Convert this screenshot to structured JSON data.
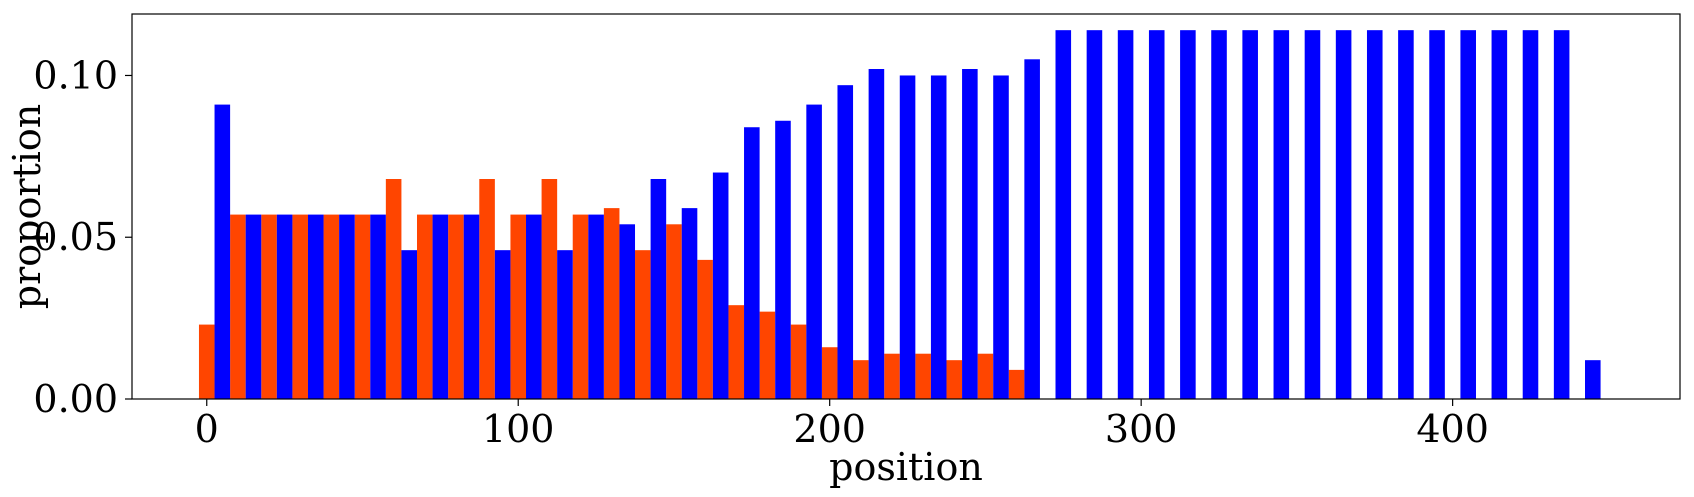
{
  "chart_data": {
    "type": "bar",
    "title": "",
    "xlabel": "position",
    "ylabel": "proportion",
    "xlim": [
      -24,
      473
    ],
    "ylim": [
      0,
      0.119
    ],
    "xticks": [
      0,
      100,
      200,
      300,
      400
    ],
    "xtick_labels": [
      "0",
      "100",
      "200",
      "300",
      "400"
    ],
    "yticks": [
      0,
      0.05,
      0.1
    ],
    "ytick_labels": [
      "0.00",
      "0.05",
      "0.10"
    ],
    "bar_width": 5,
    "grid": false,
    "legend": "none",
    "series": [
      {
        "color": "#ff4500",
        "x": [
          0,
          10,
          20,
          30,
          40,
          50,
          60,
          70,
          80,
          90,
          100,
          110,
          120,
          130,
          140,
          150,
          160,
          170,
          180,
          190,
          200,
          210,
          220,
          230,
          240,
          250,
          260
        ],
        "values": [
          0.023,
          0.057,
          0.057,
          0.057,
          0.057,
          0.057,
          0.068,
          0.057,
          0.057,
          0.068,
          0.057,
          0.068,
          0.057,
          0.059,
          0.046,
          0.054,
          0.043,
          0.029,
          0.027,
          0.023,
          0.016,
          0.012,
          0.014,
          0.014,
          0.012,
          0.014,
          0.009
        ]
      },
      {
        "color": "#0000ff",
        "x": [
          5,
          15,
          25,
          35,
          45,
          55,
          65,
          75,
          85,
          95,
          105,
          115,
          125,
          135,
          145,
          155,
          165,
          175,
          185,
          195,
          205,
          215,
          225,
          235,
          245,
          255,
          265,
          275,
          285,
          295,
          305,
          315,
          325,
          335,
          345,
          355,
          365,
          375,
          385,
          395,
          405,
          415,
          425,
          435,
          445
        ],
        "values": [
          0.091,
          0.057,
          0.057,
          0.057,
          0.057,
          0.057,
          0.046,
          0.057,
          0.057,
          0.046,
          0.057,
          0.046,
          0.057,
          0.054,
          0.068,
          0.059,
          0.07,
          0.084,
          0.086,
          0.091,
          0.097,
          0.102,
          0.1,
          0.1,
          0.102,
          0.1,
          0.105,
          0.114,
          0.114,
          0.114,
          0.114,
          0.114,
          0.114,
          0.114,
          0.114,
          0.114,
          0.114,
          0.114,
          0.114,
          0.114,
          0.114,
          0.114,
          0.114,
          0.114,
          0.012
        ]
      }
    ]
  }
}
